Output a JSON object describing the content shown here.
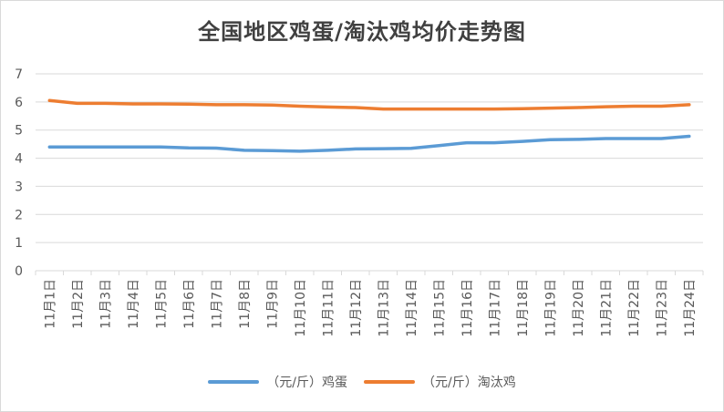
{
  "chart_data": {
    "type": "line",
    "title": "全国地区鸡蛋/淘汰鸡均价走势图",
    "categories": [
      "11月1日",
      "11月2日",
      "11月3日",
      "11月4日",
      "11月5日",
      "11月6日",
      "11月7日",
      "11月8日",
      "11月9日",
      "11月10日",
      "11月11日",
      "11月12日",
      "11月13日",
      "11月14日",
      "11月15日",
      "11月16日",
      "11月17日",
      "11月18日",
      "11月19日",
      "11月20日",
      "11月21日",
      "11月22日",
      "11月23日",
      "11月24日"
    ],
    "ylim": [
      0,
      7
    ],
    "yticks": [
      "0",
      "1",
      "2",
      "3",
      "4",
      "5",
      "6",
      "7"
    ],
    "grid": true,
    "legend_position": "bottom",
    "series": [
      {
        "name": "（元/斤）鸡蛋",
        "color": "#5B9BD5",
        "values": [
          4.4,
          4.4,
          4.4,
          4.4,
          4.4,
          4.37,
          4.36,
          4.28,
          4.27,
          4.25,
          4.28,
          4.33,
          4.34,
          4.35,
          4.45,
          4.55,
          4.55,
          4.6,
          4.66,
          4.67,
          4.7,
          4.7,
          4.7,
          4.78
        ]
      },
      {
        "name": "（元/斤）淘汰鸡",
        "color": "#ED7D31",
        "values": [
          6.05,
          5.95,
          5.95,
          5.93,
          5.93,
          5.92,
          5.9,
          5.9,
          5.89,
          5.85,
          5.82,
          5.8,
          5.75,
          5.75,
          5.75,
          5.75,
          5.75,
          5.76,
          5.78,
          5.8,
          5.83,
          5.85,
          5.85,
          5.9
        ]
      }
    ]
  }
}
